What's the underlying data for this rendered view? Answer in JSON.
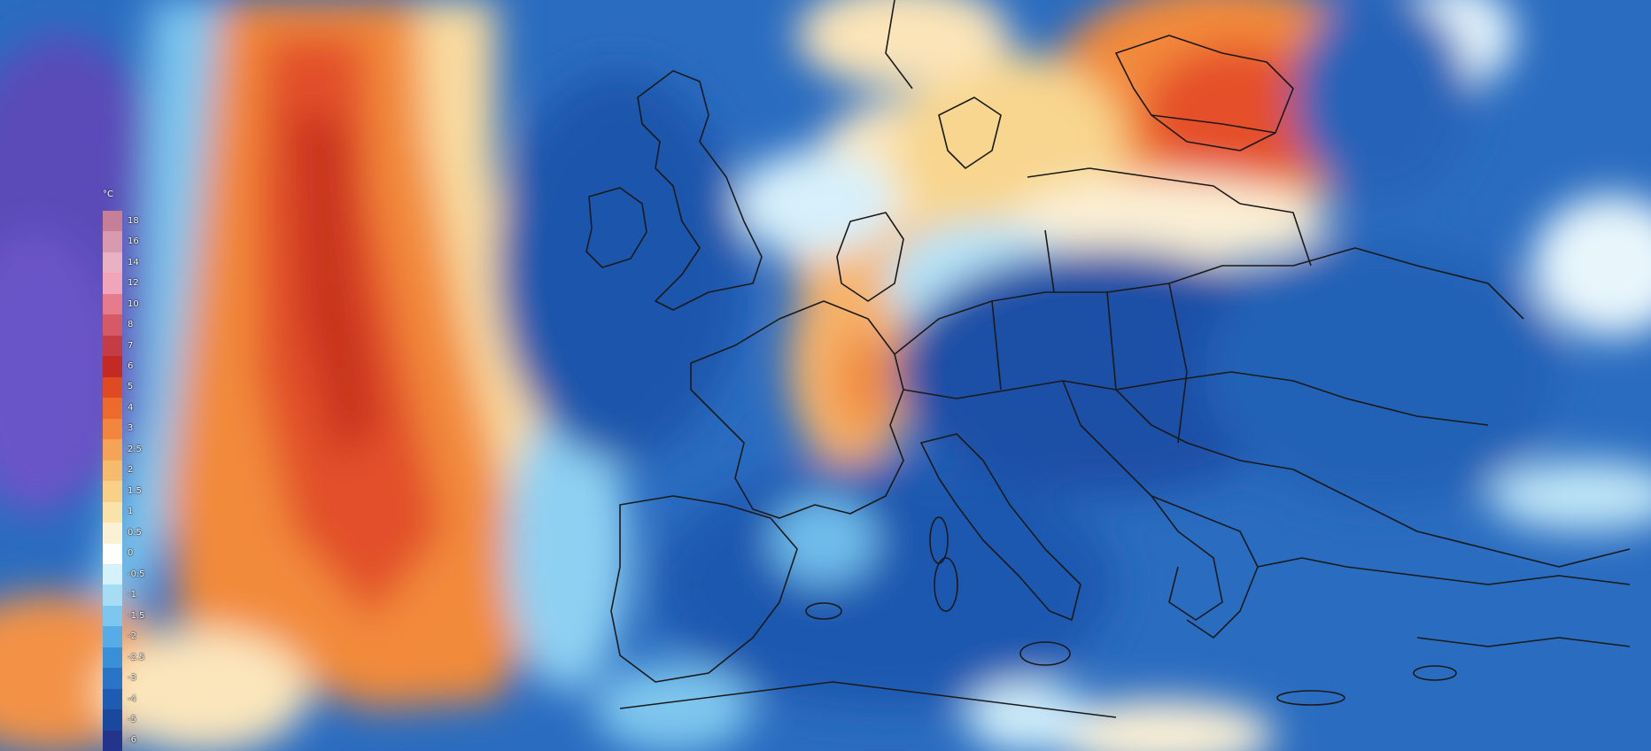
{
  "legend": {
    "unit": "°C",
    "stops": [
      {
        "label": "18",
        "color": "#c77f98"
      },
      {
        "label": "16",
        "color": "#d99ab0"
      },
      {
        "label": "14",
        "color": "#e8b2c4"
      },
      {
        "label": "12",
        "color": "#f0a6b8"
      },
      {
        "label": "10",
        "color": "#e67b8c"
      },
      {
        "label": "8",
        "color": "#d65a66"
      },
      {
        "label": "7",
        "color": "#c53d44"
      },
      {
        "label": "6",
        "color": "#c52a22"
      },
      {
        "label": "5",
        "color": "#e04a22"
      },
      {
        "label": "4",
        "color": "#ec6a2c"
      },
      {
        "label": "3",
        "color": "#f3863c"
      },
      {
        "label": "2.5",
        "color": "#f5a355"
      },
      {
        "label": "2",
        "color": "#f7bb6c"
      },
      {
        "label": "1.5",
        "color": "#f8d086"
      },
      {
        "label": "1",
        "color": "#f9e3a8"
      },
      {
        "label": "0.5",
        "color": "#fbf1d4"
      },
      {
        "label": "0",
        "color": "#ffffff"
      },
      {
        "label": "-0.5",
        "color": "#d5f1fb"
      },
      {
        "label": "-1",
        "color": "#a7dcf5"
      },
      {
        "label": "-1.5",
        "color": "#7cc6ef"
      },
      {
        "label": "-2",
        "color": "#56ace6"
      },
      {
        "label": "-2.5",
        "color": "#3a8fd9"
      },
      {
        "label": "-3",
        "color": "#2a74c8"
      },
      {
        "label": "-4",
        "color": "#1e5cb4"
      },
      {
        "label": "-5",
        "color": "#1a489e"
      },
      {
        "label": "-6",
        "color": "#24348a"
      }
    ]
  }
}
